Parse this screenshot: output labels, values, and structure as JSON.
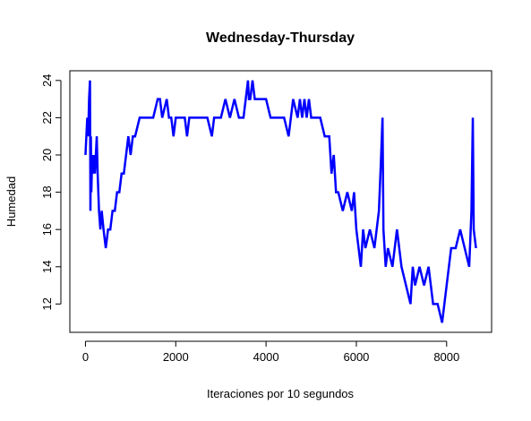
{
  "chart_data": {
    "type": "line",
    "title": "Wednesday-Thursday",
    "x_label": "Iteraciones por 10 segundos",
    "y_label": "Humedad",
    "x": [
      0,
      20,
      40,
      60,
      80,
      100,
      110,
      120,
      130,
      150,
      170,
      190,
      210,
      230,
      250,
      270,
      300,
      330,
      360,
      400,
      450,
      500,
      550,
      600,
      650,
      700,
      750,
      800,
      850,
      900,
      950,
      1000,
      1050,
      1100,
      1200,
      1300,
      1400,
      1500,
      1600,
      1650,
      1700,
      1800,
      1850,
      1900,
      1950,
      2000,
      2100,
      2200,
      2250,
      2300,
      2400,
      2500,
      2700,
      2800,
      2850,
      2900,
      3000,
      3100,
      3200,
      3300,
      3400,
      3500,
      3600,
      3620,
      3650,
      3700,
      3750,
      3800,
      4000,
      4100,
      4200,
      4400,
      4500,
      4600,
      4700,
      4750,
      4800,
      4850,
      4900,
      4950,
      5000,
      5100,
      5200,
      5300,
      5400,
      5450,
      5500,
      5550,
      5600,
      5700,
      5800,
      5900,
      5950,
      6000,
      6050,
      6100,
      6150,
      6200,
      6300,
      6400,
      6500,
      6550,
      6580,
      6600,
      6650,
      6700,
      6800,
      6900,
      7000,
      7100,
      7200,
      7250,
      7300,
      7400,
      7500,
      7600,
      7700,
      7800,
      7900,
      7950,
      8000,
      8100,
      8200,
      8300,
      8400,
      8500,
      8550,
      8580,
      8600,
      8650
    ],
    "series": [
      {
        "name": "Humedad",
        "color": "#0000ff",
        "values": [
          20,
          21,
          22,
          21,
          23,
          24,
          17,
          21,
          18,
          20,
          19,
          20,
          19,
          20,
          21,
          19,
          17,
          16,
          17,
          16,
          15,
          16,
          16,
          17,
          17,
          18,
          18,
          19,
          19,
          20,
          21,
          20,
          21,
          21,
          22,
          22,
          22,
          22,
          23,
          23,
          22,
          23,
          22,
          22,
          21,
          22,
          22,
          22,
          21,
          22,
          22,
          22,
          22,
          21,
          22,
          22,
          22,
          23,
          22,
          23,
          22,
          22,
          24,
          23,
          23,
          24,
          23,
          23,
          23,
          22,
          22,
          22,
          21,
          23,
          22,
          23,
          22,
          23,
          22,
          23,
          22,
          22,
          22,
          21,
          21,
          19,
          20,
          18,
          18,
          17,
          18,
          17,
          18,
          16,
          15,
          14,
          16,
          15,
          16,
          15,
          17,
          20,
          22,
          16,
          14,
          15,
          14,
          16,
          14,
          13,
          12,
          14,
          13,
          14,
          13,
          14,
          12,
          12,
          11,
          12,
          13,
          15,
          15,
          16,
          15,
          14,
          17,
          22,
          16,
          15
        ]
      }
    ],
    "xlim": [
      -346,
      8996
    ],
    "ylim": [
      10.48,
      24.52
    ],
    "xticks": [
      0,
      2000,
      4000,
      6000,
      8000
    ],
    "yticks": [
      12,
      14,
      16,
      18,
      20,
      22,
      24
    ]
  }
}
